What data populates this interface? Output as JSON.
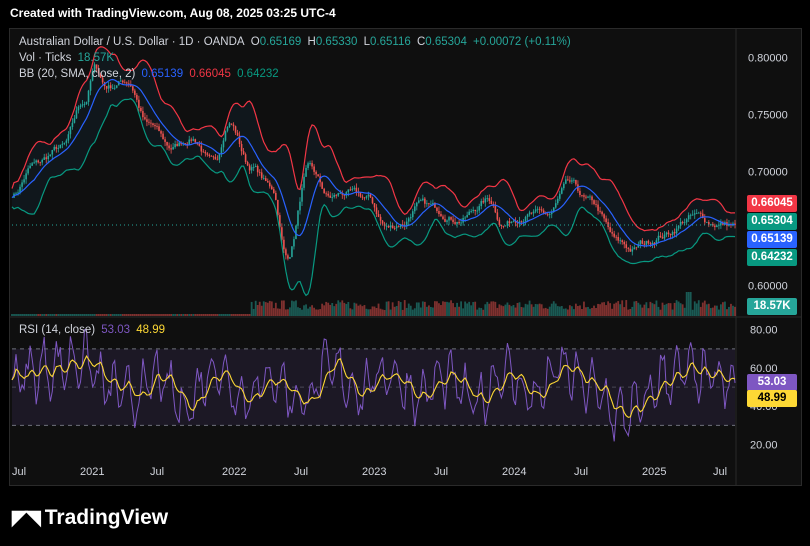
{
  "header": {
    "created": "Created with TradingView.com, Aug 08, 2025 03:25 UTC-4"
  },
  "legend": {
    "symbol": "Australian Dollar / U.S. Dollar · 1D · OANDA",
    "o_label": "O",
    "o": "0.65169",
    "h_label": "H",
    "h": "0.65330",
    "l_label": "L",
    "l": "0.65116",
    "c_label": "C",
    "c": "0.65304",
    "change": "+0.00072 (+0.11%)",
    "vol_label": "Vol · Ticks",
    "vol_value": "18.57K",
    "bb_label": "BB (20, SMA, close, 2)",
    "bb_basis": "0.65139",
    "bb_upper": "0.66045",
    "bb_lower": "0.64232",
    "rsi_label": "RSI (14, close)",
    "rsi_value": "53.03",
    "rsi_ma": "48.99"
  },
  "price_tags": {
    "upper": "0.66045",
    "close": "0.65304",
    "basis": "0.65139",
    "lower": "0.64232",
    "volume": "18.57K",
    "rsi": "53.03",
    "rsi_ma": "48.99"
  },
  "logo": {
    "text": "TradingView"
  },
  "colors": {
    "up": "#26a69a",
    "down": "#ef5350",
    "basis": "#2962ff",
    "upper": "#f23645",
    "lower": "#089981",
    "rsi": "#7e57c2",
    "rsi_ma": "#fdd835"
  },
  "chart_data": {
    "type": "line",
    "x_ticks": [
      "Jul",
      "2021",
      "Jul",
      "2022",
      "Jul",
      "2023",
      "Jul",
      "2024",
      "Jul",
      "2025",
      "Jul"
    ],
    "price_axis_ticks": [
      "0.80000",
      "0.75000",
      "0.70000",
      "0.60000"
    ],
    "price_ylim": [
      0.588,
      0.812
    ],
    "rsi_axis_ticks": [
      "80.00",
      "60.00",
      "40.00",
      "20.00"
    ],
    "rsi_ylim": [
      15,
      83
    ],
    "rsi_band": [
      30,
      70
    ],
    "price_anchors": {
      "x": [
        0,
        0.03,
        0.07,
        0.1,
        0.115,
        0.13,
        0.16,
        0.19,
        0.22,
        0.25,
        0.28,
        0.3,
        0.33,
        0.36,
        0.38,
        0.41,
        0.44,
        0.46,
        0.49,
        0.52,
        0.54,
        0.56,
        0.59,
        0.62,
        0.66,
        0.68,
        0.71,
        0.74,
        0.77,
        0.8,
        0.84,
        0.86,
        0.87,
        0.9,
        0.94,
        0.97,
        1.0
      ],
      "y": [
        0.68,
        0.705,
        0.72,
        0.76,
        0.79,
        0.775,
        0.78,
        0.74,
        0.72,
        0.73,
        0.705,
        0.745,
        0.705,
        0.685,
        0.625,
        0.7,
        0.675,
        0.68,
        0.675,
        0.65,
        0.655,
        0.67,
        0.665,
        0.66,
        0.675,
        0.655,
        0.665,
        0.66,
        0.685,
        0.67,
        0.635,
        0.63,
        0.635,
        0.645,
        0.66,
        0.655,
        0.653
      ]
    },
    "rsi_anchors": {
      "x": [
        0,
        0.05,
        0.1,
        0.13,
        0.17,
        0.2,
        0.24,
        0.28,
        0.32,
        0.36,
        0.4,
        0.44,
        0.48,
        0.52,
        0.56,
        0.6,
        0.64,
        0.68,
        0.72,
        0.76,
        0.8,
        0.84,
        0.87,
        0.9,
        0.93,
        0.96,
        1.0
      ],
      "y": [
        55,
        60,
        65,
        50,
        45,
        55,
        40,
        60,
        45,
        55,
        42,
        60,
        48,
        58,
        45,
        55,
        42,
        58,
        45,
        60,
        50,
        35,
        40,
        55,
        58,
        55,
        50
      ]
    }
  }
}
